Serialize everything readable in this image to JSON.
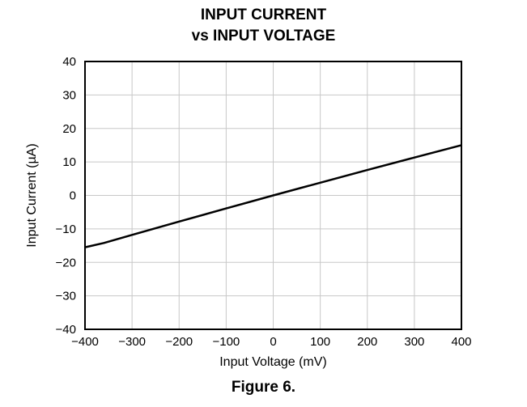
{
  "chart_data": {
    "type": "line",
    "title": "INPUT CURRENT",
    "subtitle": "vs INPUT VOLTAGE",
    "xlabel": "Input Voltage (mV)",
    "ylabel": "Input Current (µA)",
    "xlim": [
      -400,
      400
    ],
    "ylim": [
      -40,
      40
    ],
    "xticks": [
      "−400",
      "−300",
      "−200",
      "−100",
      "0",
      "100",
      "200",
      "300",
      "400"
    ],
    "yticks": [
      "40",
      "30",
      "20",
      "10",
      "0",
      "−10",
      "−20",
      "−30",
      "−40"
    ],
    "grid": true,
    "series": [
      {
        "x": [
          -400,
          -360,
          -300,
          -200,
          -100,
          0,
          100,
          200,
          300,
          400
        ],
        "y": [
          -15.5,
          -14.2,
          -11.8,
          -7.8,
          -3.9,
          0,
          3.8,
          7.6,
          11.3,
          15.0
        ]
      }
    ]
  },
  "caption": "Figure 6.",
  "colors": {
    "line": "#000000",
    "grid": "#c8c8c8",
    "frame": "#000000"
  }
}
